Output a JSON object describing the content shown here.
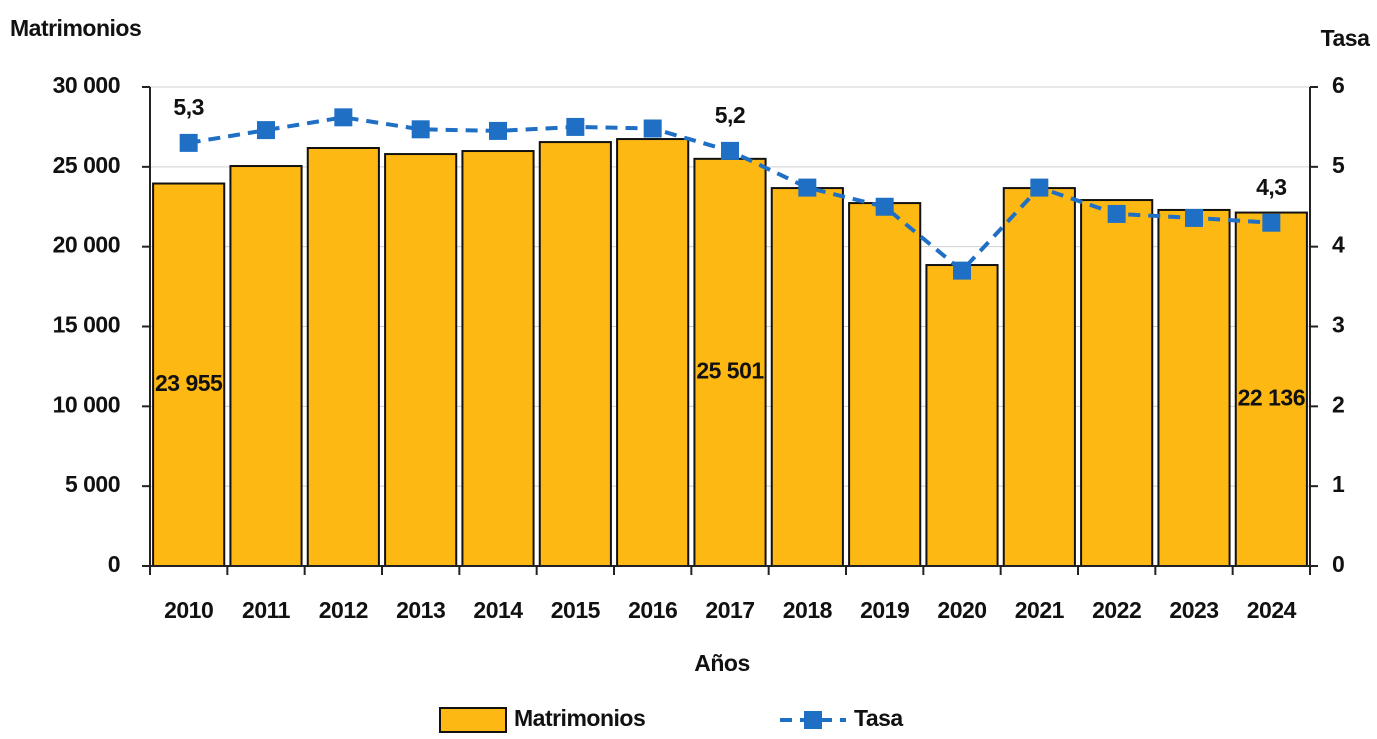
{
  "chart_data": {
    "type": "bar_line",
    "y_label": "Matrimonios",
    "y2_label": "Tasa",
    "x_label": "Años",
    "categories": [
      "2010",
      "2011",
      "2012",
      "2013",
      "2014",
      "2015",
      "2016",
      "2017",
      "2018",
      "2019",
      "2020",
      "2021",
      "2022",
      "2023",
      "2024"
    ],
    "series": [
      {
        "name": "Matrimonios",
        "type": "bar",
        "color": "#FDB813",
        "values": [
          23955,
          25050,
          26180,
          25800,
          25990,
          26550,
          26740,
          25501,
          23670,
          22730,
          18850,
          23670,
          22920,
          22300,
          22136
        ],
        "value_labels": [
          "23 955",
          null,
          null,
          null,
          null,
          null,
          null,
          "25 501",
          null,
          null,
          null,
          null,
          null,
          null,
          "22 136"
        ]
      },
      {
        "name": "Tasa",
        "type": "line",
        "axis": "y2",
        "color": "#1F6FC5",
        "dashed": true,
        "marker": "square",
        "values": [
          5.3,
          5.46,
          5.62,
          5.47,
          5.45,
          5.5,
          5.48,
          5.2,
          4.74,
          4.5,
          3.7,
          4.74,
          4.41,
          4.36,
          4.3
        ],
        "value_labels": [
          "5,3",
          null,
          null,
          null,
          null,
          null,
          null,
          "5,2",
          null,
          null,
          null,
          null,
          null,
          null,
          "4,3"
        ]
      }
    ],
    "ylim": [
      0,
      30000
    ],
    "yticks": [
      0,
      {
        "value": 5000,
        "label": "5 000"
      },
      {
        "value": 10000,
        "label": "10 000"
      },
      {
        "value": 15000,
        "label": "15 000"
      },
      {
        "value": 20000,
        "label": "20 000"
      },
      {
        "value": 25000,
        "label": "25 000"
      },
      {
        "value": 30000,
        "label": "30 000"
      }
    ],
    "y2lim": [
      0,
      6
    ],
    "y2ticks": [
      0,
      1,
      2,
      3,
      4,
      5,
      6
    ],
    "grid": true,
    "legend": "bottom"
  }
}
